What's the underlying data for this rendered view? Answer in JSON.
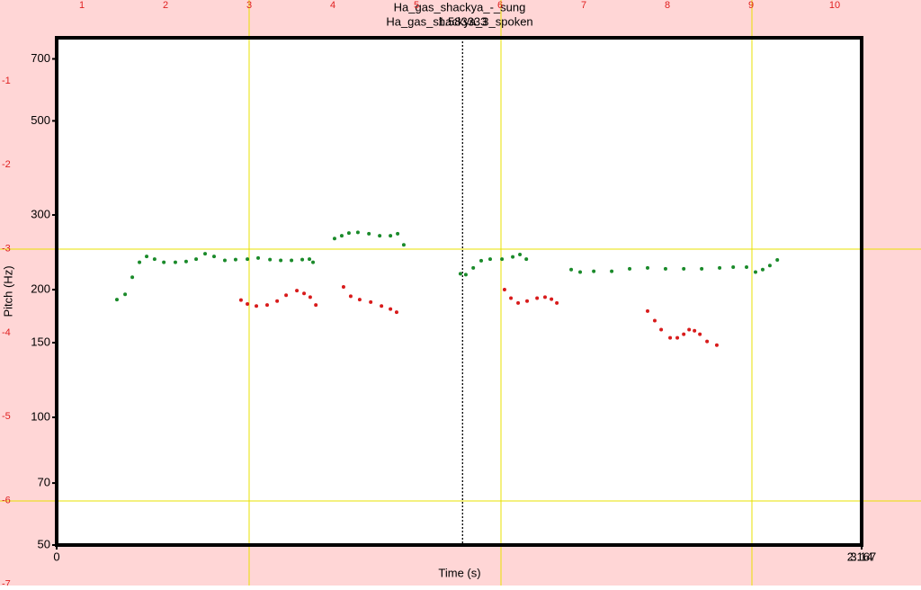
{
  "ruler": {
    "top": [
      "1",
      "2",
      "3",
      "4",
      "5",
      "6",
      "7",
      "8",
      "9",
      "10"
    ],
    "left": [
      "-1",
      "-2",
      "-3",
      "-4",
      "-5",
      "-6",
      "-7"
    ]
  },
  "chart_data": {
    "type": "scatter",
    "title": "Ha_gas_shackya_-_sung",
    "subtitle": "Ha_gas_shackya_3_spoken",
    "cursor": 1.583333,
    "xlabel": "Time (s)",
    "ylabel": "Pitch (Hz)",
    "xlim": [
      0,
      3.14
    ],
    "xticks": [
      0,
      3.14
    ],
    "secondary_xlim": [
      0,
      2.167
    ],
    "ylim": [
      50,
      785
    ],
    "yticks": [
      50,
      70,
      100,
      150,
      200,
      300,
      500,
      700
    ],
    "log_y": true,
    "series": [
      {
        "color": "#1a8a2a",
        "x": [
          0.235,
          0.267,
          0.295,
          0.323,
          0.351,
          0.382,
          0.418,
          0.463,
          0.505,
          0.544,
          0.579,
          0.614,
          0.656,
          0.698,
          0.744,
          0.786,
          0.832,
          0.874,
          0.916,
          0.958,
          0.986,
          1.0,
          1.084,
          1.112,
          1.14,
          1.175,
          1.218,
          1.26,
          1.302,
          1.33,
          1.354,
          1.575,
          1.596,
          1.625,
          1.656,
          1.691,
          1.737,
          1.779,
          1.807,
          1.832,
          2.007,
          2.042,
          2.095,
          2.165,
          2.235,
          2.305,
          2.375,
          2.446,
          2.516,
          2.586,
          2.639,
          2.691,
          2.726,
          2.754,
          2.782,
          2.811
        ],
        "values": [
          189.5,
          195,
          214,
          232,
          239.5,
          236,
          232,
          232,
          233,
          236,
          243,
          239.5,
          234.5,
          235.5,
          236,
          237.5,
          235.5,
          234.5,
          234.5,
          235.5,
          236,
          232,
          264,
          268,
          272,
          273,
          271,
          268,
          268,
          271,
          255,
          218,
          217,
          225,
          234,
          236,
          236,
          239,
          242,
          236,
          223,
          220,
          221,
          221,
          224,
          225,
          224,
          224,
          224,
          225,
          226,
          226,
          220,
          223,
          228,
          235
        ]
      },
      {
        "color": "#d81b1b",
        "x": [
          0.719,
          0.744,
          0.779,
          0.821,
          0.86,
          0.895,
          0.937,
          0.965,
          0.989,
          1.011,
          1.119,
          1.147,
          1.182,
          1.225,
          1.267,
          1.302,
          1.326,
          1.747,
          1.772,
          1.8,
          1.835,
          1.874,
          1.905,
          1.93,
          1.951,
          2.305,
          2.333,
          2.358,
          2.393,
          2.421,
          2.446,
          2.467,
          2.488,
          2.509,
          2.537,
          2.575
        ],
        "values": [
          189,
          185,
          183,
          184,
          188,
          194,
          199,
          196,
          192,
          184,
          203,
          193,
          189.5,
          187,
          183,
          180,
          177,
          200,
          191,
          186,
          188,
          191,
          192,
          190,
          186,
          178,
          169,
          161,
          154,
          154,
          157,
          161,
          160,
          157,
          151,
          148
        ]
      }
    ]
  }
}
